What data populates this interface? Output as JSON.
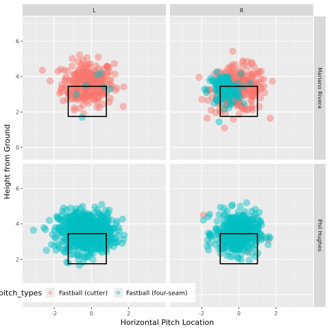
{
  "chart_data": {
    "type": "scatter",
    "xlabel": "Horizontal Pitch Location",
    "ylabel": "Height from Ground",
    "xlim": [
      -3.7,
      4.0
    ],
    "ylim": [
      -0.7,
      7.4
    ],
    "x_ticks": [
      -2,
      0,
      2
    ],
    "y_ticks": [
      0,
      2,
      4,
      6
    ],
    "column_facets": [
      "L",
      "R"
    ],
    "row_facets": [
      "Mariano Rivera",
      "Phil Hughes"
    ],
    "grid": true,
    "legend": {
      "title": "pitch_types",
      "position": "bottom",
      "entries": [
        {
          "name": "Fastball (cutter)",
          "color": "#F8766D"
        },
        {
          "name": "Fastball (four-seam)",
          "color": "#00BFC4"
        }
      ]
    },
    "strike_zone": {
      "x": [
        -1.25,
        0.8
      ],
      "y": [
        1.75,
        3.45
      ]
    },
    "strike_zone_R": {
      "x": [
        -1.0,
        1.0
      ],
      "y": [
        1.75,
        3.45
      ]
    },
    "panels": [
      {
        "col": "L",
        "row": "Mariano Rivera",
        "series": [
          {
            "name": "Fastball (cutter)",
            "center": [
              -0.2,
              3.6
            ],
            "spread": [
              0.7,
              0.65
            ],
            "count": 260
          },
          {
            "name": "Fastball (four-seam)",
            "points": [
              [
                -0.5,
                1.7
              ],
              [
                0.7,
                3.4
              ],
              [
                1.0,
                3.3
              ],
              [
                0.3,
                4.1
              ],
              [
                0.5,
                4.2
              ],
              [
                -0.8,
                3.0
              ],
              [
                -0.3,
                3.5
              ]
            ]
          }
        ]
      },
      {
        "col": "R",
        "row": "Mariano Rivera",
        "series": [
          {
            "name": "Fastball (cutter)",
            "center": [
              0.0,
              3.3
            ],
            "spread": [
              0.75,
              0.65
            ],
            "count": 250
          },
          {
            "name": "Fastball (four-seam)",
            "center": [
              -0.8,
              3.25
            ],
            "spread": [
              0.45,
              0.45
            ],
            "count": 120
          }
        ]
      },
      {
        "col": "L",
        "row": "Phil Hughes",
        "series": [
          {
            "name": "Fastball (cutter)",
            "points": [
              [
                0.5,
                2.9
              ],
              [
                -0.3,
                3.4
              ],
              [
                0.2,
                3.0
              ],
              [
                0.8,
                3.6
              ]
            ]
          },
          {
            "name": "Fastball (four-seam)",
            "center": [
              -0.3,
              3.55
            ],
            "spread": [
              0.75,
              0.6
            ],
            "count": 600
          }
        ]
      },
      {
        "col": "R",
        "row": "Phil Hughes",
        "series": [
          {
            "name": "Fastball (cutter)",
            "points": [
              [
                -1.9,
                4.5
              ],
              [
                0.6,
                3.8
              ],
              [
                1.1,
                3.2
              ],
              [
                1.6,
                3.1
              ],
              [
                -0.3,
                2.6
              ],
              [
                0.5,
                2.4
              ]
            ]
          },
          {
            "name": "Fastball (four-seam)",
            "center": [
              -0.1,
              3.45
            ],
            "spread": [
              0.6,
              0.6
            ],
            "count": 400
          }
        ]
      }
    ]
  }
}
